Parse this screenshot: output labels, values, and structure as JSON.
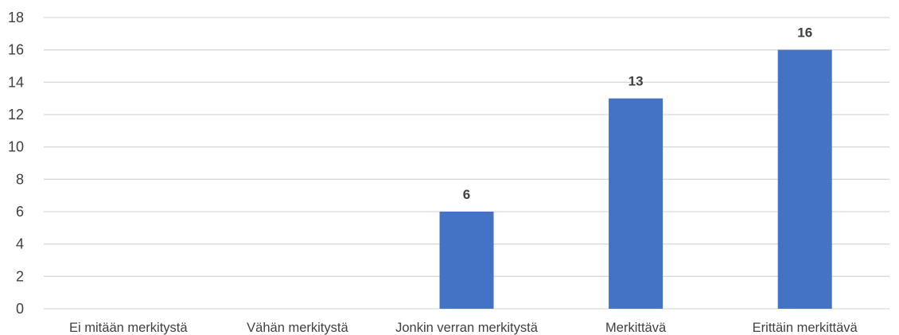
{
  "chart_data": {
    "type": "bar",
    "categories": [
      "Ei mitään merkitystä",
      "Vähän merkitystä",
      "Jonkin verran merkitystä",
      "Merkittävä",
      "Erittäin merkittävä"
    ],
    "values": [
      0,
      0,
      6,
      13,
      16
    ],
    "data_labels": [
      "",
      "",
      "6",
      "13",
      "16"
    ],
    "title": "",
    "xlabel": "",
    "ylabel": "",
    "ylim": [
      0,
      18
    ],
    "y_ticks": [
      0,
      2,
      4,
      6,
      8,
      10,
      12,
      14,
      16,
      18
    ],
    "grid": true,
    "legend": "none",
    "colors": {
      "bar": "#4472c4",
      "gridline": "#d9d9d9",
      "text": "#404040"
    }
  }
}
